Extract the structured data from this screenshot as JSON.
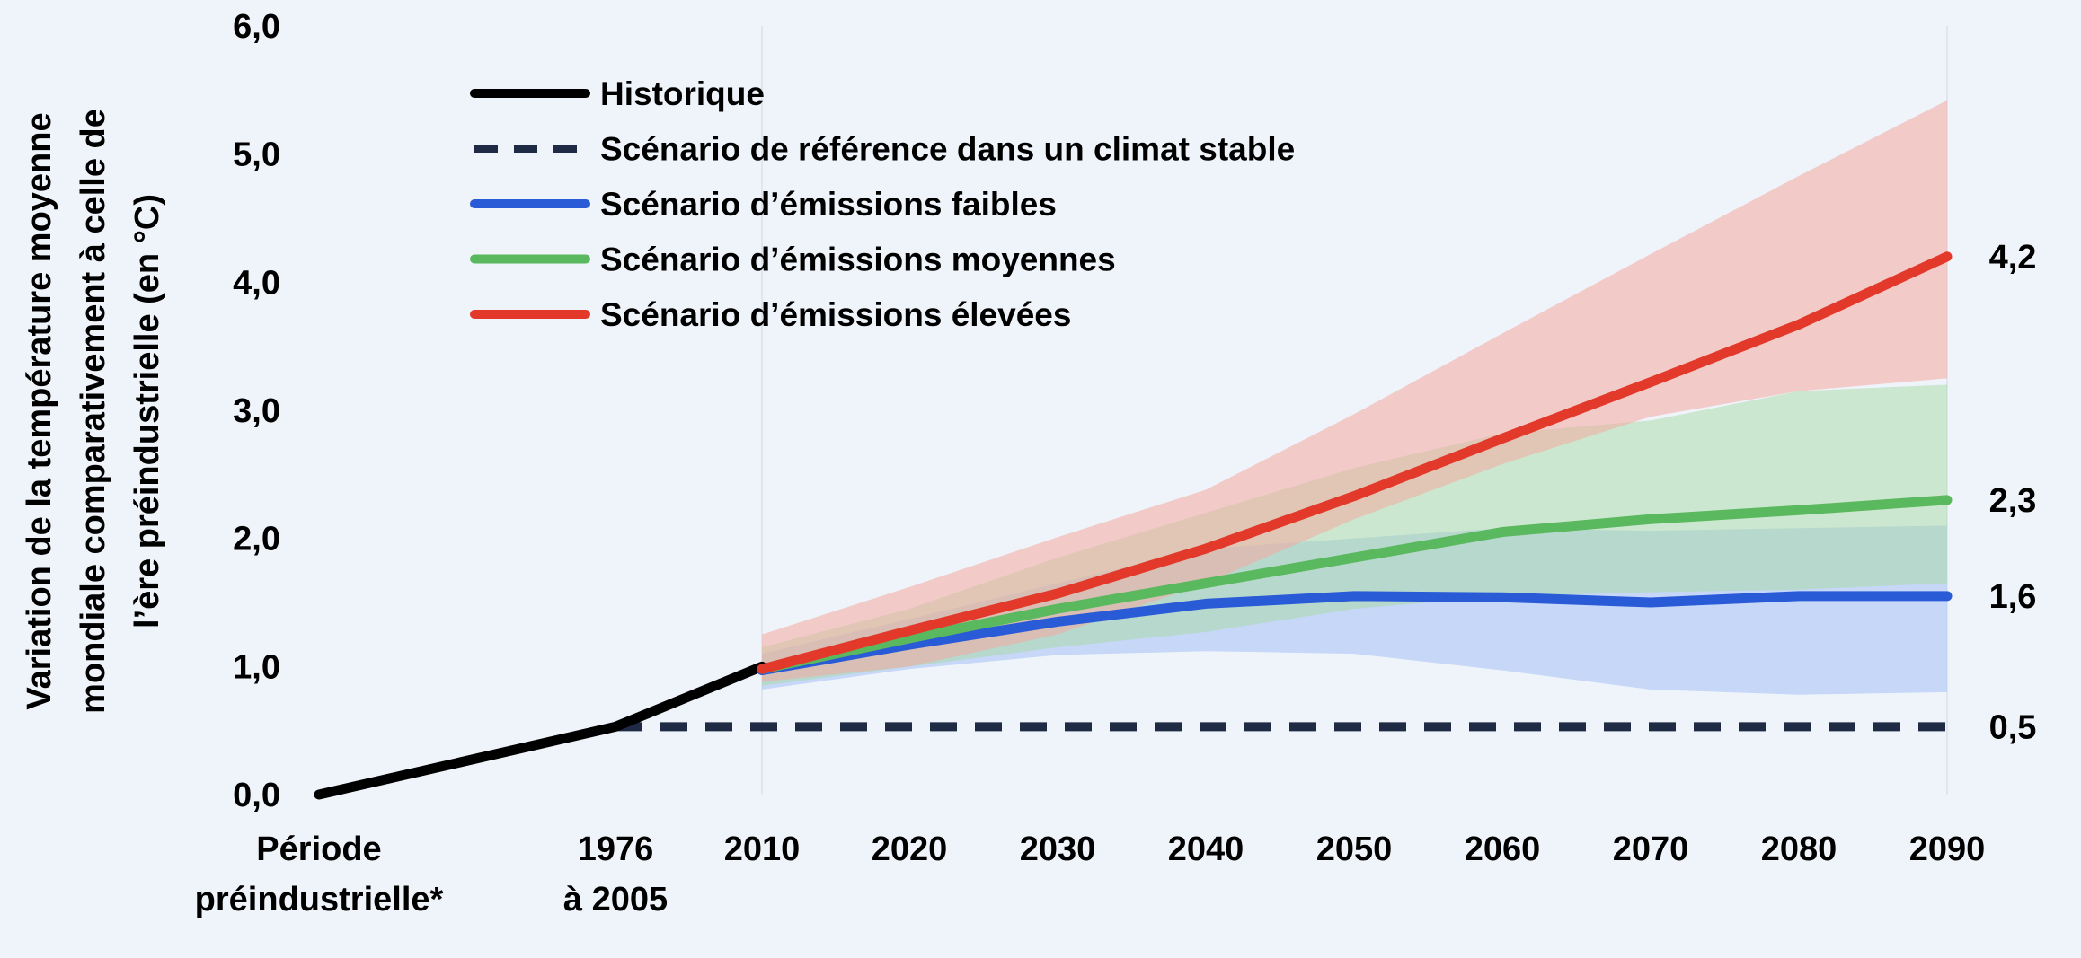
{
  "chart_data": {
    "type": "line",
    "title": "",
    "ylabel_lines": [
      "Variation de la température moyenne",
      "mondiale comparativement à celle de",
      "l’ère préindustrielle (en °C)"
    ],
    "xlabel": "",
    "ylim": [
      0,
      6
    ],
    "y_ticks": [
      "0,0",
      "1,0",
      "2,0",
      "3,0",
      "4,0",
      "5,0",
      "6,0"
    ],
    "x_categories": [
      {
        "key": "pre",
        "lines": [
          "Période",
          "préindustrielle*"
        ]
      },
      {
        "key": "1976",
        "lines": [
          "1976",
          "à 2005"
        ]
      },
      {
        "key": "2010",
        "lines": [
          "2010"
        ]
      },
      {
        "key": "2020",
        "lines": [
          "2020"
        ]
      },
      {
        "key": "2030",
        "lines": [
          "2030"
        ]
      },
      {
        "key": "2040",
        "lines": [
          "2040"
        ]
      },
      {
        "key": "2050",
        "lines": [
          "2050"
        ]
      },
      {
        "key": "2060",
        "lines": [
          "2060"
        ]
      },
      {
        "key": "2070",
        "lines": [
          "2070"
        ]
      },
      {
        "key": "2080",
        "lines": [
          "2080"
        ]
      },
      {
        "key": "2090",
        "lines": [
          "2090"
        ]
      }
    ],
    "grid": false,
    "legend_position": "top-left",
    "series": [
      {
        "name": "Historique",
        "color": "#000000",
        "dashed": false,
        "x": [
          "pre",
          "1976",
          "2010"
        ],
        "values": [
          0.0,
          0.53,
          1.0
        ]
      },
      {
        "name": "Scénario de référence dans un climat stable",
        "color": "#1f2a44",
        "dashed": true,
        "x": [
          "1976",
          "2090"
        ],
        "values": [
          0.53,
          0.53
        ],
        "end_label": "0,5"
      },
      {
        "name": "Scénario d’émissions faibles",
        "color": "#2a5bd7",
        "dashed": false,
        "x": [
          "2010",
          "2020",
          "2030",
          "2040",
          "2050",
          "2060",
          "2070",
          "2080",
          "2090"
        ],
        "values": [
          0.97,
          1.17,
          1.35,
          1.49,
          1.55,
          1.54,
          1.5,
          1.55,
          1.55
        ],
        "end_label": "1,6",
        "band": {
          "color": "#b8cef5",
          "opacity": 0.75,
          "lower": [
            0.82,
            0.98,
            1.09,
            1.12,
            1.1,
            0.97,
            0.82,
            0.78,
            0.8
          ],
          "upper": [
            1.1,
            1.37,
            1.65,
            1.92,
            2.0,
            2.08,
            2.06,
            2.08,
            2.1
          ]
        }
      },
      {
        "name": "Scénario d’émissions moyennes",
        "color": "#5ab85e",
        "dashed": false,
        "x": [
          "2010",
          "2020",
          "2030",
          "2040",
          "2050",
          "2060",
          "2070",
          "2080",
          "2090"
        ],
        "values": [
          0.98,
          1.22,
          1.45,
          1.65,
          1.85,
          2.05,
          2.15,
          2.22,
          2.3
        ],
        "end_label": "2,3",
        "band": {
          "color": "#a7d9a4",
          "opacity": 0.5,
          "lower": [
            0.85,
            1.0,
            1.15,
            1.27,
            1.45,
            1.55,
            1.58,
            1.6,
            1.65
          ],
          "upper": [
            1.15,
            1.45,
            1.85,
            2.2,
            2.55,
            2.82,
            2.92,
            3.15,
            3.2
          ]
        }
      },
      {
        "name": "Scénario d’émissions élevées",
        "color": "#e3392b",
        "dashed": false,
        "x": [
          "2010",
          "2020",
          "2030",
          "2040",
          "2050",
          "2060",
          "2070",
          "2080",
          "2090"
        ],
        "values": [
          0.98,
          1.28,
          1.57,
          1.92,
          2.33,
          2.78,
          3.22,
          3.67,
          4.2
        ],
        "end_label": "4,2",
        "band": {
          "color": "#f4a9a1",
          "opacity": 0.55,
          "lower": [
            0.88,
            1.0,
            1.25,
            1.65,
            2.15,
            2.58,
            2.95,
            3.15,
            3.25
          ],
          "upper": [
            1.25,
            1.62,
            2.01,
            2.38,
            2.97,
            3.6,
            4.22,
            4.83,
            5.42
          ]
        }
      }
    ]
  }
}
